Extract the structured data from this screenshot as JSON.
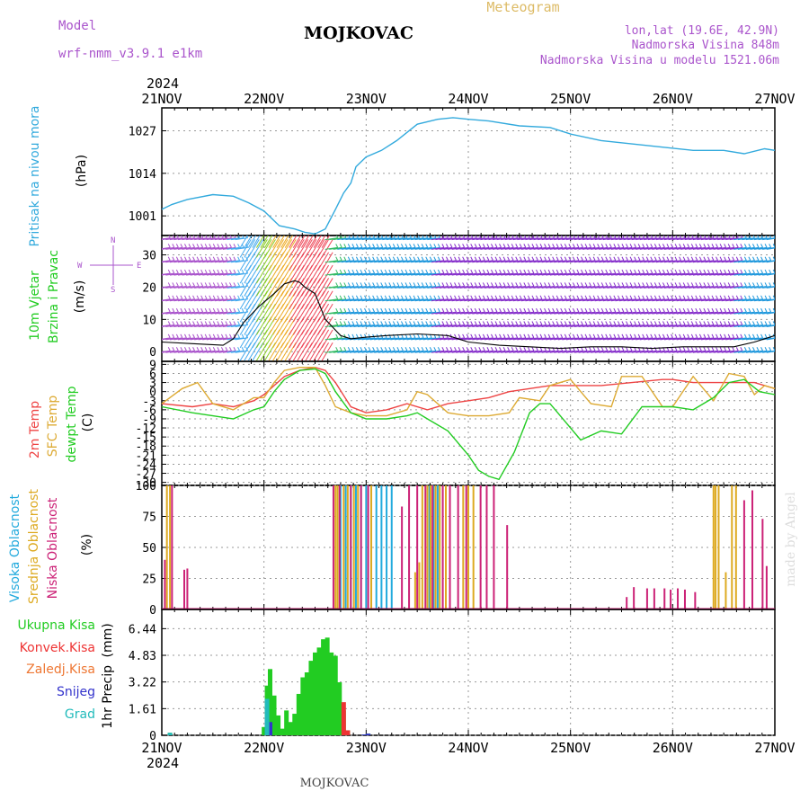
{
  "header": {
    "model_label": "Model",
    "model_name": "wrf-nmm_v3.9.1 e1km",
    "station": "MOJKOVAC",
    "product": "Meteogram",
    "lonlat": "lon,lat (19.6E, 42.9N)",
    "elevation": "Nadmorska Visina 848m",
    "model_elevation": "Nadmorska Visina u modelu 1521.06m",
    "year": "2024",
    "footer_station": "MOJKOVAC",
    "credit": "made by Angel"
  },
  "colors": {
    "pressure": "#33aadd",
    "temp2m": "#ee4444",
    "sfc_temp": "#ddaa33",
    "dewpoint": "#22cc22",
    "high_cloud": "#22aadd",
    "mid_cloud": "#ddaa22",
    "low_cloud": "#cc2277",
    "total_precip": "#22cc22",
    "conv_precip": "#ee3333",
    "freezing_precip": "#ee7733",
    "snow": "#3333cc",
    "hail": "#22bbbb",
    "title": "#000000",
    "meta": "#aa55cc",
    "product": "#ddbb66",
    "wind_black": "#000000"
  },
  "time_axis": {
    "labels": [
      "21NOV",
      "22NOV",
      "23NOV",
      "24NOV",
      "25NOV",
      "26NOV",
      "27NOV"
    ]
  },
  "chart_data": [
    {
      "type": "line",
      "panel": "pressure",
      "ylabel_left": "Pritisak na nivou mora",
      "unit": "(hPa)",
      "yticks": [
        1001,
        1014,
        1027
      ],
      "ylim": [
        995,
        1034
      ],
      "x_days": [
        0,
        0.1,
        0.25,
        0.5,
        0.7,
        0.85,
        1.0,
        1.15,
        1.3,
        1.4,
        1.5,
        1.6,
        1.7,
        1.78,
        1.85,
        1.9,
        2.0,
        2.15,
        2.3,
        2.5,
        2.7,
        2.85,
        3.0,
        3.2,
        3.5,
        3.8,
        4.0,
        4.3,
        4.6,
        4.9,
        5.2,
        5.5,
        5.7,
        5.9,
        6.0
      ],
      "values": [
        1003,
        1004.5,
        1006,
        1007.5,
        1007,
        1005,
        1002.5,
        998,
        997,
        996,
        995.5,
        997,
        1003,
        1008,
        1011,
        1016,
        1019,
        1021,
        1024,
        1029,
        1030.5,
        1031,
        1030.5,
        1030,
        1028.5,
        1028,
        1026,
        1024,
        1023,
        1022,
        1021,
        1021,
        1020,
        1021.5,
        1021
      ]
    },
    {
      "type": "line",
      "panel": "wind",
      "ylabel_left": "10m Vjetar",
      "ylabel_left2": "Brzina i Pravac",
      "unit": "(m/s)",
      "compass": {
        "n": "N",
        "e": "E",
        "s": "S",
        "w": "W"
      },
      "yticks": [
        0,
        10,
        20,
        30
      ],
      "ylim": [
        -3,
        36
      ],
      "series": [
        {
          "name": "wind_speed",
          "x_days": [
            0,
            0.3,
            0.6,
            0.7,
            0.8,
            0.95,
            1.1,
            1.2,
            1.3,
            1.35,
            1.4,
            1.5,
            1.6,
            1.75,
            1.85,
            2.0,
            2.2,
            2.5,
            2.8,
            3.0,
            3.3,
            3.6,
            3.9,
            4.2,
            4.5,
            4.8,
            5.1,
            5.4,
            5.6,
            5.8,
            6.0
          ],
          "values": [
            3,
            2.5,
            2,
            4,
            9,
            14,
            18,
            21,
            22,
            21.5,
            20,
            18,
            10,
            5,
            4,
            4.5,
            5,
            5.5,
            5,
            3,
            2,
            1.5,
            1,
            1.5,
            1.5,
            1,
            1.5,
            1.5,
            1.5,
            3,
            5
          ]
        }
      ]
    },
    {
      "type": "line",
      "panel": "temperature",
      "ylabel_left": "2m Temp",
      "ylabel_left2": "SFC Temp",
      "ylabel_left3": "dewpt Temp",
      "unit": "(C)",
      "yticks": [
        9,
        6,
        3,
        0,
        -3,
        -6,
        -9,
        -12,
        -15,
        -18,
        -21,
        -24,
        -27,
        -30
      ],
      "ylim": [
        -31,
        10
      ],
      "series": [
        {
          "name": "2m Temp",
          "x_days": [
            0,
            0.3,
            0.5,
            0.7,
            0.9,
            1.0,
            1.1,
            1.2,
            1.35,
            1.5,
            1.6,
            1.7,
            1.85,
            2.0,
            2.2,
            2.4,
            2.6,
            2.8,
            3.0,
            3.2,
            3.4,
            3.6,
            3.8,
            4.0,
            4.3,
            4.6,
            4.9,
            5.0,
            5.2,
            5.4,
            5.6,
            5.8,
            6.0
          ],
          "values": [
            -4,
            -5,
            -4,
            -5,
            -3,
            -1,
            2,
            5,
            7,
            8,
            7,
            3,
            -5,
            -7,
            -6,
            -4,
            -6,
            -4,
            -3,
            -2,
            0,
            1,
            2,
            2,
            2,
            3,
            4,
            4,
            3,
            3,
            3,
            3,
            1
          ]
        },
        {
          "name": "SFC Temp",
          "x_days": [
            0,
            0.2,
            0.35,
            0.5,
            0.7,
            0.9,
            1.0,
            1.1,
            1.2,
            1.35,
            1.5,
            1.6,
            1.7,
            1.85,
            2.0,
            2.2,
            2.4,
            2.5,
            2.6,
            2.8,
            3.0,
            3.2,
            3.4,
            3.5,
            3.7,
            3.8,
            4.0,
            4.2,
            4.4,
            4.5,
            4.7,
            4.9,
            5.0,
            5.2,
            5.4,
            5.55,
            5.7,
            5.8,
            5.9,
            6.0
          ],
          "values": [
            -4,
            1,
            3,
            -4,
            -6,
            -2,
            -2,
            3,
            7,
            8,
            8,
            2,
            -5,
            -7,
            -8,
            -8,
            -6,
            0,
            -1,
            -7,
            -8,
            -8,
            -7,
            -2,
            -3,
            2,
            4,
            -4,
            -5,
            5,
            5,
            -5,
            -5,
            5,
            -3,
            6,
            5,
            -1,
            2,
            1
          ]
        },
        {
          "name": "dewpt Temp",
          "x_days": [
            0,
            0.3,
            0.5,
            0.7,
            0.9,
            1.0,
            1.1,
            1.2,
            1.35,
            1.5,
            1.6,
            1.7,
            1.85,
            2.0,
            2.2,
            2.4,
            2.5,
            2.6,
            2.8,
            3.0,
            3.1,
            3.2,
            3.3,
            3.45,
            3.6,
            3.7,
            3.8,
            3.95,
            4.1,
            4.3,
            4.5,
            4.7,
            4.9,
            5.0,
            5.2,
            5.4,
            5.55,
            5.7,
            5.85,
            6.0
          ],
          "values": [
            -5,
            -7,
            -8,
            -9,
            -6,
            -5,
            0,
            4,
            7,
            7.5,
            6,
            0,
            -7,
            -9,
            -9,
            -8,
            -7,
            -9,
            -13,
            -21,
            -26,
            -28,
            -29,
            -20,
            -7,
            -4,
            -4,
            -10,
            -16,
            -13,
            -14,
            -5,
            -5,
            -5,
            -6,
            -2,
            3,
            4,
            0,
            -1
          ]
        }
      ]
    },
    {
      "type": "bar",
      "panel": "clouds",
      "ylabel_left": "Visoka Oblacnost",
      "ylabel_left2": "Srednja Oblacnost",
      "ylabel_left3": "Niska Oblacnost",
      "unit": "(%)",
      "yticks": [
        0,
        25,
        50,
        75,
        100
      ],
      "ylim": [
        0,
        100
      ],
      "series": [
        {
          "name": "Visoka Oblacnost",
          "x_days": [
            1.75,
            1.8,
            1.85,
            1.9,
            1.95,
            2.0,
            2.05,
            2.1,
            2.15,
            2.2,
            2.25,
            2.62,
            2.66,
            2.7
          ],
          "values": [
            100,
            100,
            100,
            100,
            100,
            100,
            100,
            100,
            100,
            100,
            100,
            100,
            100,
            100
          ]
        },
        {
          "name": "Srednja Oblacnost",
          "x_days": [
            0.05,
            0.08,
            1.7,
            1.72,
            1.78,
            1.82,
            1.88,
            1.92,
            2.05,
            2.48,
            2.52,
            2.55,
            2.6,
            2.63,
            2.68,
            2.72,
            2.78,
            2.95,
            3.0,
            3.05,
            5.4,
            5.42,
            5.45,
            5.52,
            5.58,
            5.62
          ],
          "values": [
            100,
            100,
            100,
            100,
            100,
            100,
            100,
            100,
            100,
            30,
            38,
            100,
            100,
            100,
            100,
            100,
            100,
            100,
            100,
            100,
            100,
            100,
            100,
            30,
            100,
            100
          ]
        },
        {
          "name": "Niska Oblacnost",
          "x_days": [
            0.03,
            0.1,
            0.22,
            0.25,
            1.68,
            1.74,
            1.85,
            1.95,
            2.02,
            2.35,
            2.42,
            2.5,
            2.58,
            2.65,
            2.75,
            2.82,
            2.9,
            2.98,
            3.12,
            3.18,
            3.25,
            3.38,
            4.55,
            4.62,
            4.75,
            4.82,
            4.92,
            4.98,
            5.05,
            5.12,
            5.22,
            5.7,
            5.78,
            5.88,
            5.92
          ],
          "values": [
            40,
            100,
            32,
            33,
            100,
            100,
            100,
            100,
            100,
            83,
            100,
            100,
            100,
            100,
            100,
            100,
            100,
            100,
            100,
            100,
            100,
            68,
            10,
            18,
            17,
            17,
            17,
            16,
            17,
            16,
            14,
            88,
            96,
            73,
            35
          ]
        }
      ]
    },
    {
      "type": "bar",
      "panel": "precipitation",
      "legend": [
        "Ukupna Kisa",
        "Konvek.Kisa",
        "Zaledj.Kisa",
        "Snijeg",
        "Grad"
      ],
      "ylabel_left": "1hr Precip",
      "unit": "(mm)",
      "yticks": [
        0,
        1.61,
        3.22,
        4.83,
        6.44
      ],
      "ylim": [
        0,
        7.6
      ],
      "series": [
        {
          "name": "Ukupna Kisa",
          "x_days": [
            0.08,
            1.0,
            1.03,
            1.06,
            1.1,
            1.14,
            1.18,
            1.22,
            1.26,
            1.3,
            1.34,
            1.38,
            1.42,
            1.46,
            1.5,
            1.54,
            1.58,
            1.62,
            1.66,
            1.7,
            1.74,
            1.78,
            1.82,
            1.98,
            2.02
          ],
          "values": [
            0.15,
            0.5,
            3.0,
            4.0,
            2.4,
            1.2,
            0.4,
            1.5,
            0.8,
            1.3,
            2.5,
            3.5,
            3.8,
            4.5,
            5.0,
            5.3,
            5.8,
            5.9,
            5.0,
            4.8,
            3.2,
            1.5,
            0.3,
            0.05,
            0.1
          ]
        },
        {
          "name": "Konvek.Kisa",
          "x_days": [
            1.78,
            1.82
          ],
          "values": [
            2.0,
            0.3
          ]
        },
        {
          "name": "Snijeg",
          "x_days": [
            1.03,
            1.06,
            1.98,
            2.02
          ],
          "values": [
            1.0,
            0.8,
            0.05,
            0.1
          ]
        },
        {
          "name": "Grad",
          "x_days": [
            0.08,
            1.03
          ],
          "values": [
            0.15,
            2.2
          ]
        }
      ]
    }
  ]
}
